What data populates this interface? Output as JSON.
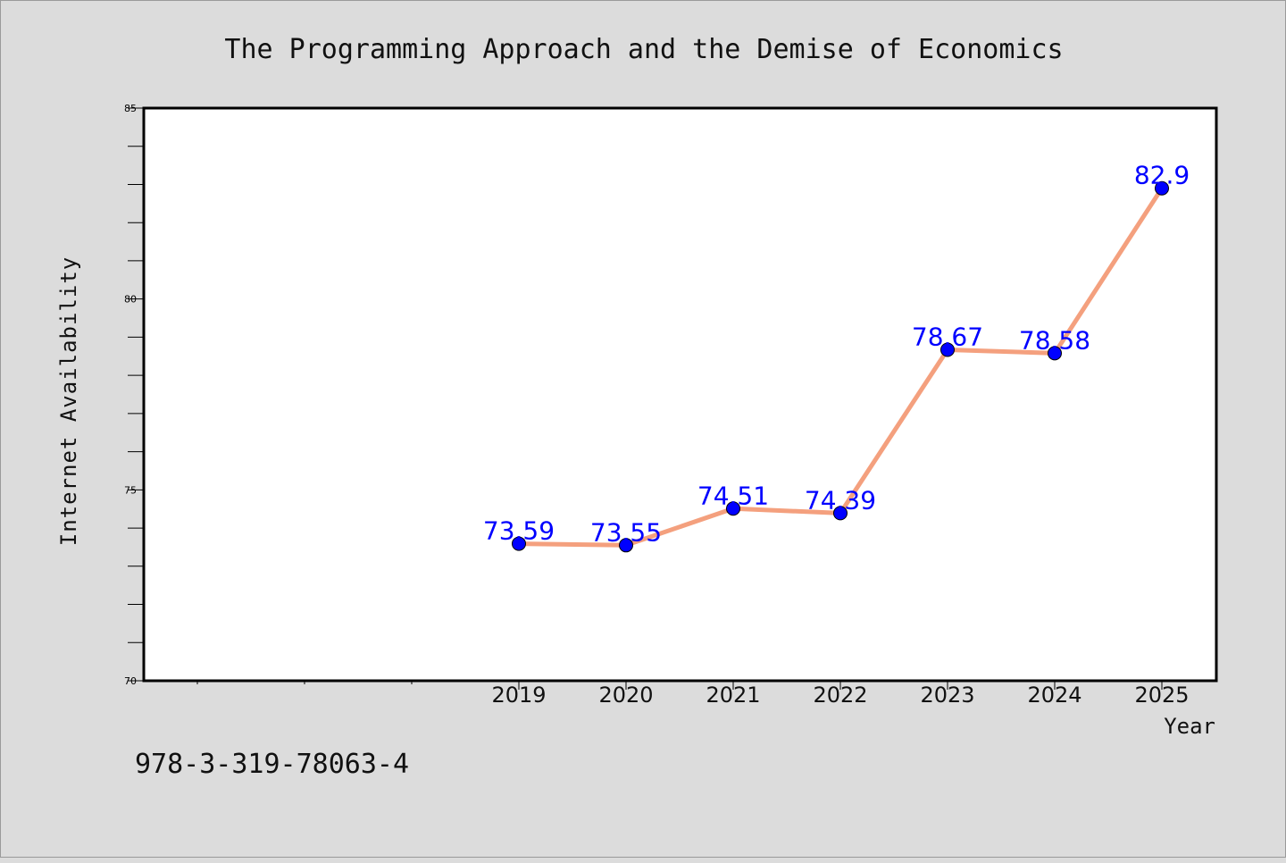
{
  "chart_data": {
    "type": "line",
    "title": "The Programming Approach and the Demise of Economics",
    "xlabel": "Year",
    "ylabel": "Internet Availability",
    "categories": [
      "",
      "",
      "",
      "2019",
      "2020",
      "2021",
      "2022",
      "2023",
      "2024",
      "2025"
    ],
    "x": [
      "2019",
      "2020",
      "2021",
      "2022",
      "2023",
      "2024",
      "2025"
    ],
    "values": [
      73.59,
      73.55,
      74.51,
      74.39,
      78.67,
      78.58,
      82.9
    ],
    "data_labels": [
      "73.59",
      "73.55",
      "74.51",
      "74.39",
      "78.67",
      "78.58",
      "82.9"
    ],
    "ylim": [
      70,
      85
    ],
    "y_ticks": [
      "70",
      "75",
      "80",
      "85"
    ],
    "grid": false,
    "colors": {
      "line": "#f4a07e",
      "marker": "#0000ff",
      "label": "#0000ff",
      "background": "#dcdcdc",
      "plot_background": "#ffffff"
    }
  },
  "footnote": "978-3-319-78063-4"
}
